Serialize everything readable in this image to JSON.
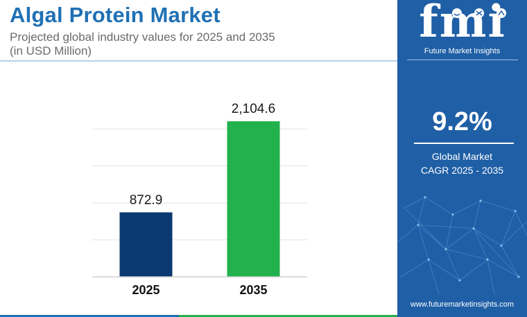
{
  "header": {
    "title": "Algal Protein Market",
    "subtitle_line1": "Projected global industry values for 2025 and 2035",
    "subtitle_line2": "(in USD Million)"
  },
  "chart_data": {
    "type": "bar",
    "categories": [
      "2025",
      "2035"
    ],
    "values": [
      872.9,
      2104.6
    ],
    "value_labels": [
      "872.9",
      "2,104.6"
    ],
    "colors": [
      "#0b3a72",
      "#22b14c"
    ],
    "ylim": [
      0,
      2500
    ],
    "grid": true,
    "title": "",
    "xlabel": "",
    "ylabel": ""
  },
  "sidebar": {
    "logo_text": "fmi",
    "logo_subtitle": "Future Market Insights",
    "cagr_value": "9.2%",
    "cagr_label_line1": "Global Market",
    "cagr_label_line2": "CAGR 2025 - 2035",
    "website": "www.futuremarketinsights.com"
  },
  "colors": {
    "brand_blue": "#1f70b4",
    "panel_blue": "#1f5fa6",
    "bar_dark": "#0b3a72",
    "bar_green": "#22b14c"
  }
}
